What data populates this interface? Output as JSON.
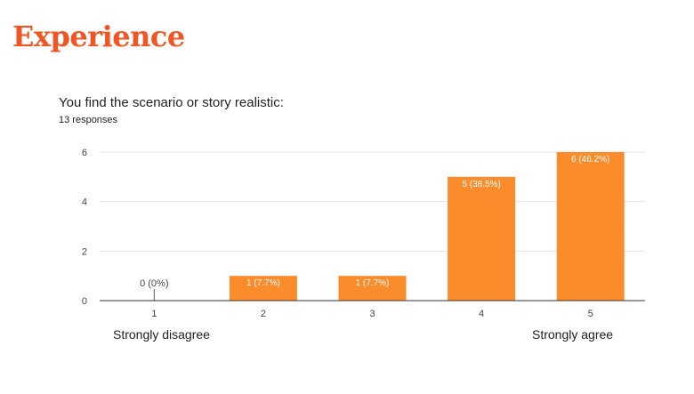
{
  "slide": {
    "title": "Experience"
  },
  "chart_data": {
    "type": "bar",
    "title": "You find the scenario or story realistic:",
    "subtitle": "13 responses",
    "categories": [
      "1",
      "2",
      "3",
      "4",
      "5"
    ],
    "values": [
      0,
      1,
      1,
      5,
      6
    ],
    "data_labels": [
      "0 (0%)",
      "1 (7.7%)",
      "1 (7.7%)",
      "5 (38.5%)",
      "6 (46.2%)"
    ],
    "ylim": [
      0,
      6
    ],
    "yticks": [
      0,
      2,
      4,
      6
    ],
    "grid": true,
    "bar_color": "#fb8c2b",
    "scale_labels": {
      "low": "Strongly disagree",
      "high": "Strongly agree"
    }
  }
}
